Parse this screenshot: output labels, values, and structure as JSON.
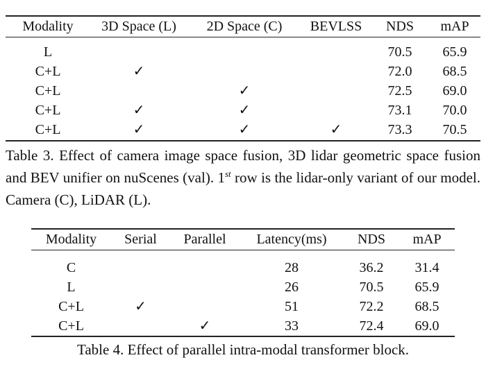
{
  "table3": {
    "headers": [
      "Modality",
      "3D Space (L)",
      "2D Space (C)",
      "BEVLSS",
      "NDS",
      "mAP"
    ],
    "rows": [
      [
        "L",
        "",
        "",
        "",
        "70.5",
        "65.9"
      ],
      [
        "C+L",
        "✓",
        "",
        "",
        "72.0",
        "68.5"
      ],
      [
        "C+L",
        "",
        "✓",
        "",
        "72.5",
        "69.0"
      ],
      [
        "C+L",
        "✓",
        "✓",
        "",
        "73.1",
        "70.0"
      ],
      [
        "C+L",
        "✓",
        "✓",
        "✓",
        "73.3",
        "70.5"
      ]
    ],
    "caption_part1": "Table 3. Effect of camera image space fusion, 3D lidar geometric space fusion and BEV unifier on nuScenes (val). 1",
    "caption_sup": "st",
    "caption_part2": " row is the lidar-only variant of our model. Camera (C), LiDAR (L)."
  },
  "table4": {
    "headers": [
      "Modality",
      "Serial",
      "Parallel",
      "Latency(ms)",
      "NDS",
      "mAP"
    ],
    "rows": [
      [
        "C",
        "",
        "",
        "28",
        "36.2",
        "31.4"
      ],
      [
        "L",
        "",
        "",
        "26",
        "70.5",
        "65.9"
      ],
      [
        "C+L",
        "✓",
        "",
        "51",
        "72.2",
        "68.5"
      ],
      [
        "C+L",
        "",
        "✓",
        "33",
        "72.4",
        "69.0"
      ]
    ],
    "caption": "Table 4. Effect of parallel intra-modal transformer block."
  }
}
